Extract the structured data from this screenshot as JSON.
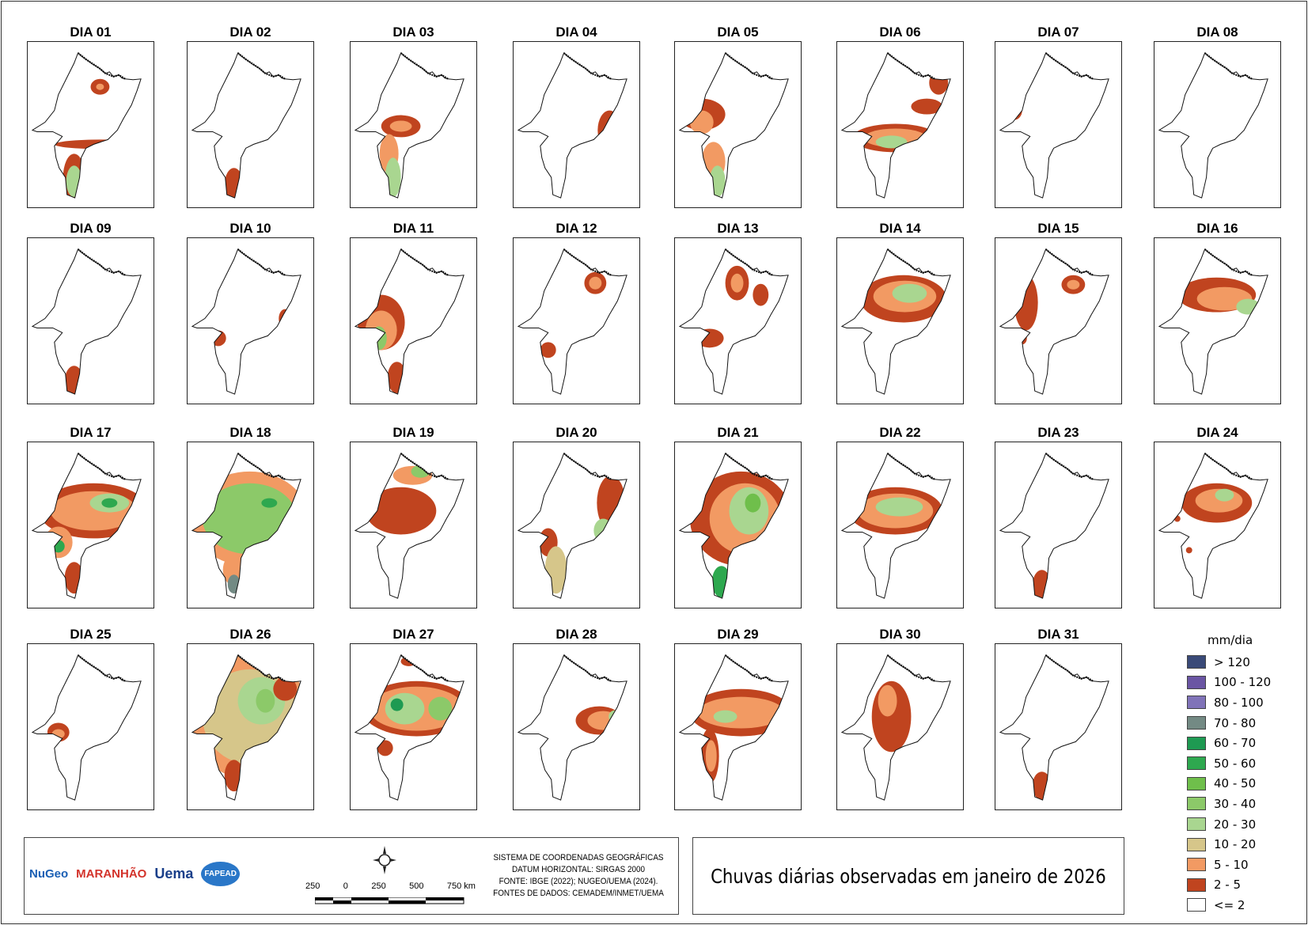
{
  "title": "Chuvas diárias observadas em janeiro de 2026",
  "days": [
    "DIA 01",
    "DIA 02",
    "DIA 03",
    "DIA 04",
    "DIA 05",
    "DIA 06",
    "DIA 07",
    "DIA 08",
    "DIA 09",
    "DIA 10",
    "DIA 11",
    "DIA 12",
    "DIA 13",
    "DIA 14",
    "DIA 15",
    "DIA 16",
    "DIA 17",
    "DIA 18",
    "DIA 19",
    "DIA 20",
    "DIA 21",
    "DIA 22",
    "DIA 23",
    "DIA 24",
    "DIA 25",
    "DIA 26",
    "DIA 27",
    "DIA 28",
    "DIA 29",
    "DIA 30",
    "DIA 31"
  ],
  "legend": {
    "title": "mm/dia",
    "classes": [
      {
        "label": "> 120",
        "color": "#3a4a78"
      },
      {
        "label": "100 - 120",
        "color": "#6a55a3"
      },
      {
        "label": "80 - 100",
        "color": "#8073b8"
      },
      {
        "label": "70 - 80",
        "color": "#738a84"
      },
      {
        "label": "60 - 70",
        "color": "#1e9a52"
      },
      {
        "label": "50 - 60",
        "color": "#2ea84f"
      },
      {
        "label": "40 - 50",
        "color": "#6fbf4b"
      },
      {
        "label": "30 - 40",
        "color": "#8cc969"
      },
      {
        "label": "20 - 30",
        "color": "#a9d690"
      },
      {
        "label": "10 - 20",
        "color": "#d6c68a"
      },
      {
        "label": "5 - 10",
        "color": "#f29a63"
      },
      {
        "label": "2 - 5",
        "color": "#c0441f"
      },
      {
        "label": "<= 2",
        "color": "#ffffff"
      }
    ]
  },
  "info": {
    "credits": [
      "SISTEMA DE COORDENADAS GEOGRÁFICAS",
      "DATUM HORIZONTAL: SIRGAS 2000",
      "FONTE: IBGE (2022); NUGEO/UEMA (2024).",
      "FONTES DE DADOS: CEMADEM/INMET/UEMA"
    ],
    "scale_labels": [
      "250",
      "0",
      "250",
      "500",
      "750 km"
    ],
    "logos": [
      "NuGeo",
      "MARANHÃO",
      "Uema",
      "FAPEAD"
    ]
  }
}
